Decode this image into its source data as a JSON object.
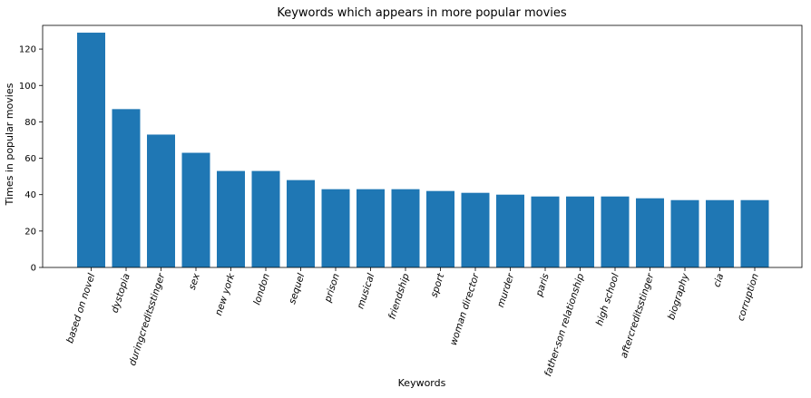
{
  "chart_data": {
    "type": "bar",
    "title": "Keywords which appears in more popular movies",
    "xlabel": "Keywords",
    "ylabel": "Times in popular movies",
    "ylim": [
      0,
      133
    ],
    "yticks": [
      0,
      20,
      40,
      60,
      80,
      100,
      120
    ],
    "grid": false,
    "bar_color": "#1f77b4",
    "categories": [
      "based on novel",
      "dystopia",
      "duringcreditsstinger",
      "sex",
      "new york",
      "london",
      "sequel",
      "prison",
      "musical",
      "friendship",
      "sport",
      "woman director",
      "murder",
      "paris",
      "father-son relationship",
      "high school",
      "aftercreditsstinger",
      "biography",
      "cia",
      "corruption"
    ],
    "values": [
      129,
      87,
      73,
      63,
      53,
      53,
      48,
      43,
      43,
      43,
      42,
      41,
      40,
      39,
      39,
      39,
      38,
      37,
      37,
      37
    ]
  }
}
